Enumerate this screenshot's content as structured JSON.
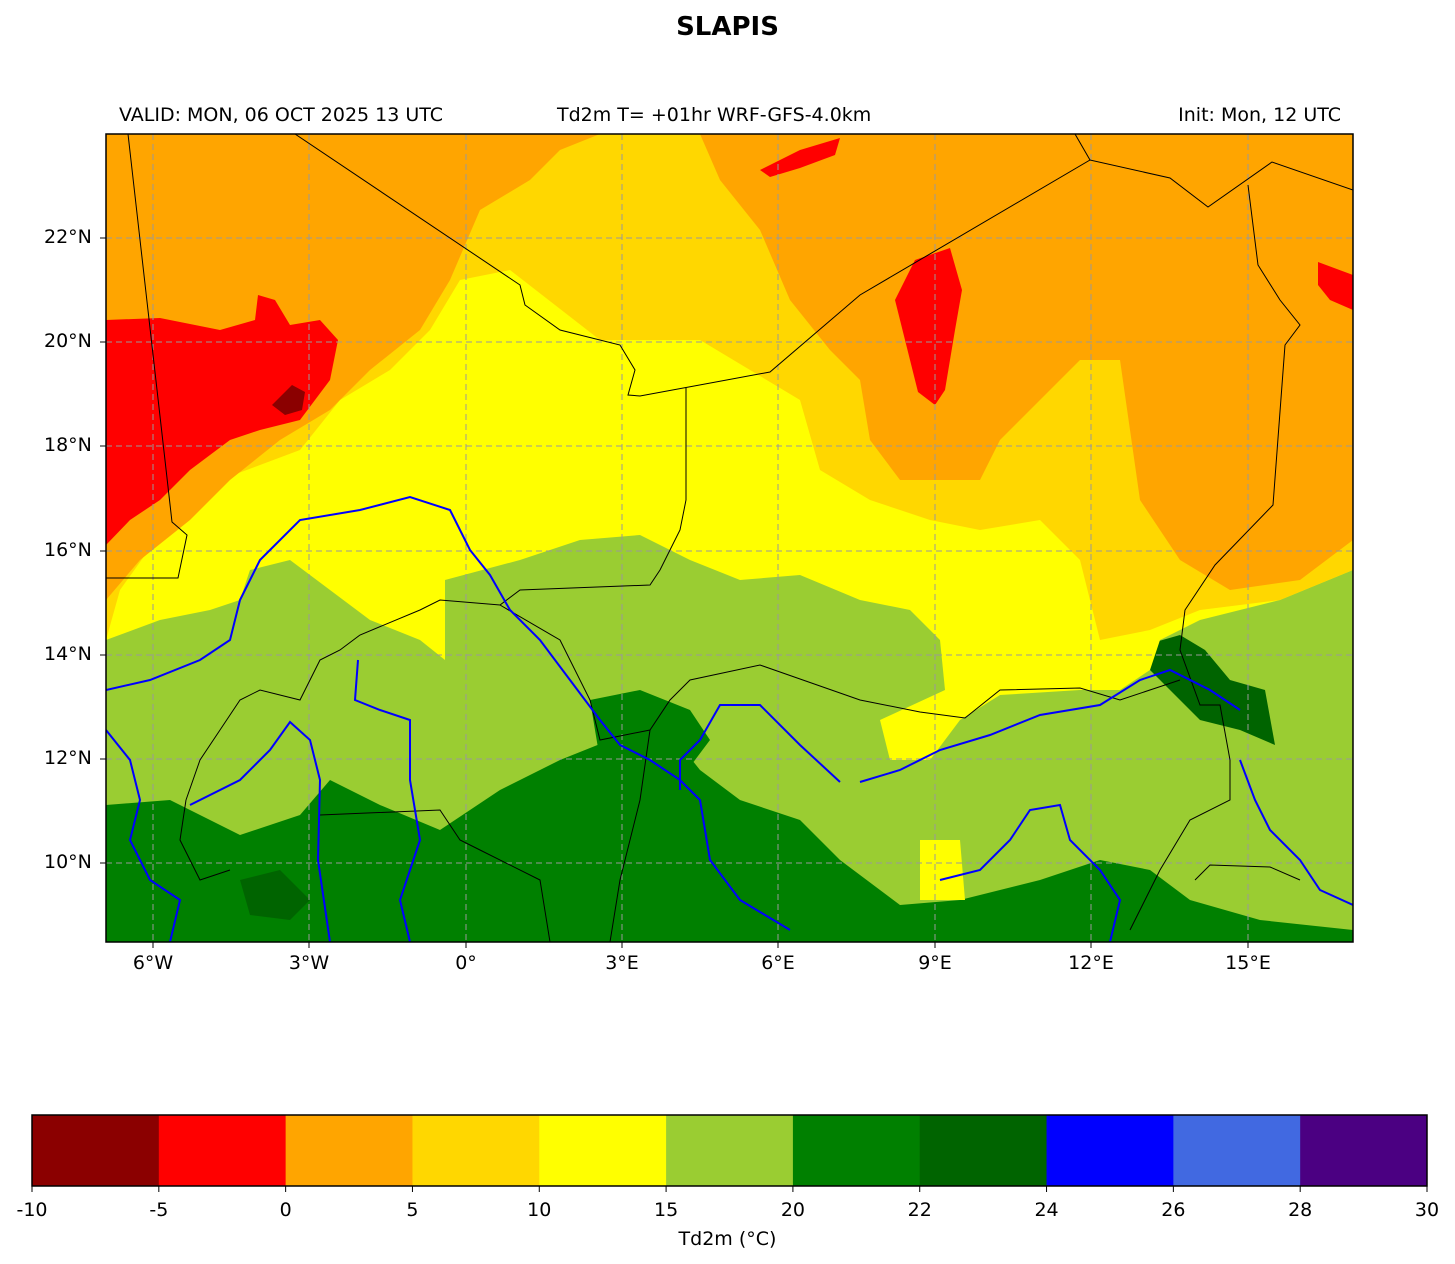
{
  "title": "SLAPIS",
  "subtitle": {
    "valid": "VALID: MON, 06 OCT 2025 13 UTC",
    "variable": "Td2m T= +01hr WRF-GFS-4.0km",
    "init": "Init: Mon, 12 UTC"
  },
  "map": {
    "lon_range": [
      -7,
      17
    ],
    "lat_range": [
      8.5,
      24
    ],
    "lat_ticks": [
      "22°N",
      "20°N",
      "18°N",
      "16°N",
      "14°N",
      "12°N",
      "10°N"
    ],
    "lon_ticks": [
      "6°W",
      "3°W",
      "0°",
      "3°E",
      "6°E",
      "9°E",
      "12°E",
      "15°E"
    ],
    "gridlines": true
  },
  "colorbar": {
    "label": "Td2m (°C)",
    "ticks": [
      "-10",
      "-5",
      "0",
      "5",
      "10",
      "15",
      "20",
      "22",
      "24",
      "26",
      "28",
      "30"
    ],
    "colors": [
      "#8b0000",
      "#ff0000",
      "#ffa500",
      "#ffd700",
      "#ffff00",
      "#9acd32",
      "#008000",
      "#006400",
      "#0000ff",
      "#4169e1",
      "#4b0082"
    ]
  }
}
